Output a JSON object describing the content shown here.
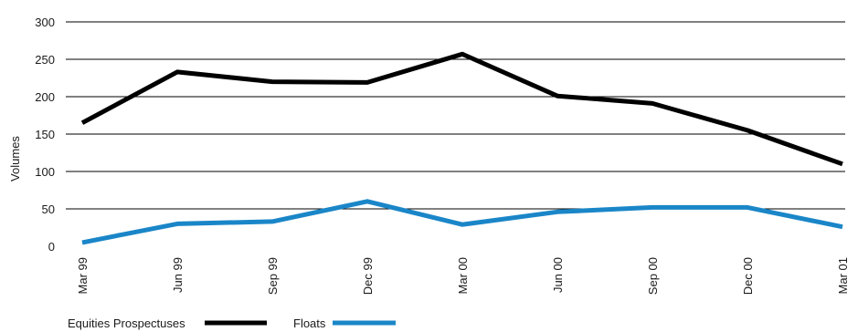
{
  "chart_data": {
    "type": "line",
    "title": "",
    "xlabel": "",
    "ylabel": "Volumes",
    "ylim": [
      0,
      300
    ],
    "yticks": [
      0,
      50,
      100,
      150,
      200,
      250,
      300
    ],
    "categories": [
      "Mar 99",
      "Jun 99",
      "Sep 99",
      "Dec 99",
      "Mar 00",
      "Jun 00",
      "Sep 00",
      "Dec 00",
      "Mar 01"
    ],
    "grid": "horizontal",
    "legend_position": "bottom-left",
    "series": [
      {
        "name": "Equities Prospectuses",
        "color": "#000000",
        "values": [
          165,
          233,
          220,
          219,
          257,
          201,
          191,
          155,
          110
        ]
      },
      {
        "name": "Floats",
        "color": "#1a86c8",
        "values": [
          5,
          30,
          33,
          60,
          29,
          46,
          52,
          52,
          26
        ]
      }
    ]
  }
}
